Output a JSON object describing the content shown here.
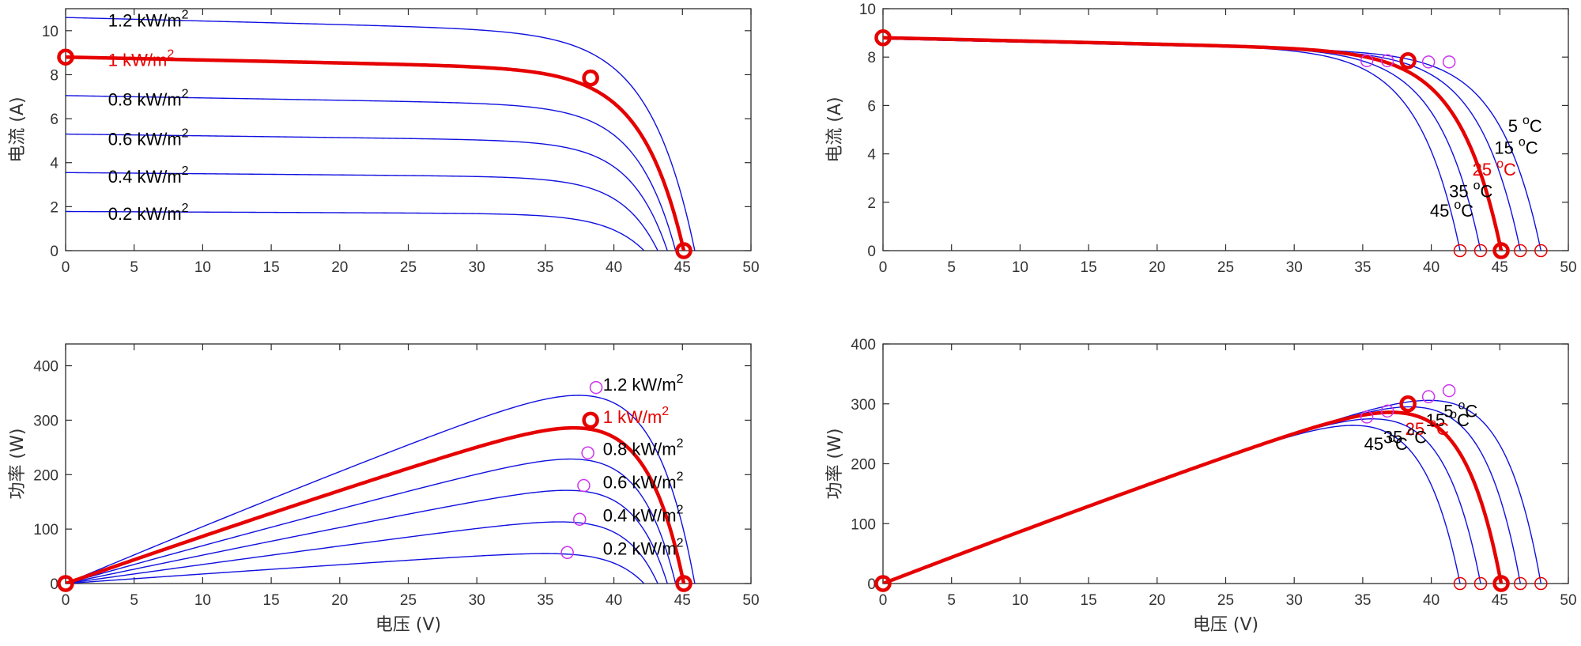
{
  "colors": {
    "curve": "#1010e0",
    "highlight": "#e60000",
    "mpp_marker": "#cc33ee",
    "voc_marker": "#e60000"
  },
  "chart_data": [
    {
      "id": "iv_irradiance",
      "type": "line",
      "xlabel": "",
      "ylabel": "电流 (A)",
      "xlim": [
        0,
        50
      ],
      "ylim": [
        0,
        11
      ],
      "xticks": [
        "0",
        "5",
        "10",
        "15",
        "20",
        "25",
        "30",
        "35",
        "40",
        "45",
        "50"
      ],
      "yticks": [
        "0",
        "2",
        "4",
        "6",
        "8",
        "10"
      ],
      "series": [
        {
          "name": "1.2 kW/m2",
          "label": "1.2 kW/m",
          "isc": 10.6,
          "voc": 45.9,
          "vmp": 38.7,
          "imp": 9.4,
          "highlight": false
        },
        {
          "name": "1 kW/m2",
          "label": "1 kW/m",
          "isc": 8.8,
          "voc": 45.1,
          "vmp": 38.3,
          "imp": 7.85,
          "highlight": true
        },
        {
          "name": "0.8 kW/m2",
          "label": "0.8 kW/m",
          "isc": 7.05,
          "voc": 44.5,
          "vmp": 38.1,
          "imp": 6.3,
          "highlight": false
        },
        {
          "name": "0.6 kW/m2",
          "label": "0.6 kW/m",
          "isc": 5.3,
          "voc": 43.9,
          "vmp": 37.8,
          "imp": 4.75,
          "highlight": false
        },
        {
          "name": "0.4 kW/m2",
          "label": "0.4 kW/m",
          "isc": 3.55,
          "voc": 43.2,
          "vmp": 37.5,
          "imp": 3.15,
          "highlight": false
        },
        {
          "name": "0.2 kW/m2",
          "label": "0.2 kW/m",
          "isc": 1.78,
          "voc": 42.2,
          "vmp": 36.6,
          "imp": 1.56,
          "highlight": false
        }
      ],
      "points": {
        "isc": [
          0,
          8.8
        ],
        "mpp": [
          38.3,
          7.85
        ],
        "voc": [
          45.1,
          0
        ]
      },
      "annotations": [
        {
          "text": "1.2 kW/m",
          "sup": "2",
          "x": 3.1,
          "y": 10.2,
          "highlight": false
        },
        {
          "text": "1 kW/m",
          "sup": "2",
          "x": 3.1,
          "y": 8.4,
          "highlight": true
        },
        {
          "text": "0.8 kW/m",
          "sup": "2",
          "x": 3.1,
          "y": 6.6,
          "highlight": false
        },
        {
          "text": "0.6 kW/m",
          "sup": "2",
          "x": 3.1,
          "y": 4.8,
          "highlight": false
        },
        {
          "text": "0.4 kW/m",
          "sup": "2",
          "x": 3.1,
          "y": 3.1,
          "highlight": false
        },
        {
          "text": "0.2 kW/m",
          "sup": "2",
          "x": 3.1,
          "y": 1.4,
          "highlight": false
        }
      ]
    },
    {
      "id": "iv_temperature",
      "type": "line",
      "xlabel": "",
      "ylabel": "电流 (A)",
      "xlim": [
        0,
        50
      ],
      "ylim": [
        0,
        10
      ],
      "xticks": [
        "0",
        "5",
        "10",
        "15",
        "20",
        "25",
        "30",
        "35",
        "40",
        "45",
        "50"
      ],
      "yticks": [
        "0",
        "2",
        "4",
        "6",
        "8",
        "10"
      ],
      "series": [
        {
          "name": "5 °C",
          "isc": 8.75,
          "voc": 48.0,
          "vmp": 41.3,
          "imp": 7.8,
          "highlight": false
        },
        {
          "name": "15 °C",
          "isc": 8.75,
          "voc": 46.5,
          "vmp": 39.8,
          "imp": 7.8,
          "highlight": false
        },
        {
          "name": "25 °C",
          "isc": 8.8,
          "voc": 45.1,
          "vmp": 38.3,
          "imp": 7.85,
          "highlight": true
        },
        {
          "name": "35 °C",
          "isc": 8.8,
          "voc": 43.6,
          "vmp": 36.8,
          "imp": 7.85,
          "highlight": false
        },
        {
          "name": "45 °C",
          "isc": 8.8,
          "voc": 42.1,
          "vmp": 35.3,
          "imp": 7.85,
          "highlight": false
        }
      ],
      "points": {
        "isc": [
          0,
          8.8
        ],
        "mpp": [
          38.3,
          7.85
        ],
        "voc": [
          45.1,
          0
        ]
      },
      "annotations": [
        {
          "text": "5",
          "deg": "o",
          "unit": "C",
          "x": 45.6,
          "y": 4.9,
          "highlight": false
        },
        {
          "text": "15",
          "deg": "o",
          "unit": "C",
          "x": 44.6,
          "y": 4.0,
          "highlight": false
        },
        {
          "text": "25",
          "deg": "o",
          "unit": "C",
          "x": 43.0,
          "y": 3.1,
          "highlight": true
        },
        {
          "text": "35",
          "deg": "o",
          "unit": "C",
          "x": 41.3,
          "y": 2.2,
          "highlight": false
        },
        {
          "text": "45",
          "deg": "o",
          "unit": "C",
          "x": 39.9,
          "y": 1.4,
          "highlight": false
        }
      ]
    },
    {
      "id": "pv_irradiance",
      "type": "line",
      "xlabel": "电压 (V)",
      "ylabel": "功率 (W)",
      "xlim": [
        0,
        50
      ],
      "ylim": [
        0,
        440
      ],
      "xticks": [
        "0",
        "5",
        "10",
        "15",
        "20",
        "25",
        "30",
        "35",
        "40",
        "45",
        "50"
      ],
      "yticks": [
        "0",
        "100",
        "200",
        "300",
        "400"
      ],
      "series": [
        {
          "name": "1.2 kW/m2",
          "isc": 10.6,
          "voc": 45.9,
          "vmp": 38.7,
          "imp": 9.4,
          "highlight": false
        },
        {
          "name": "1 kW/m2",
          "isc": 8.8,
          "voc": 45.1,
          "vmp": 38.3,
          "imp": 7.85,
          "highlight": true
        },
        {
          "name": "0.8 kW/m2",
          "isc": 7.05,
          "voc": 44.5,
          "vmp": 38.1,
          "imp": 6.3,
          "highlight": false
        },
        {
          "name": "0.6 kW/m2",
          "isc": 5.3,
          "voc": 43.9,
          "vmp": 37.8,
          "imp": 4.75,
          "highlight": false
        },
        {
          "name": "0.4 kW/m2",
          "isc": 3.55,
          "voc": 43.2,
          "vmp": 37.5,
          "imp": 3.15,
          "highlight": false
        },
        {
          "name": "0.2 kW/m2",
          "isc": 1.78,
          "voc": 42.2,
          "vmp": 36.6,
          "imp": 1.56,
          "highlight": false
        }
      ],
      "mpp_values": [
        360,
        300,
        240,
        180,
        118,
        57
      ],
      "annotations": [
        {
          "text": "1.2 kW/m",
          "sup": "2",
          "x": 39.2,
          "y": 354,
          "highlight": false
        },
        {
          "text": "1 kW/m",
          "sup": "2",
          "x": 39.2,
          "y": 295,
          "highlight": true
        },
        {
          "text": "0.8 kW/m",
          "sup": "2",
          "x": 39.2,
          "y": 236,
          "highlight": false
        },
        {
          "text": "0.6 kW/m",
          "sup": "2",
          "x": 39.2,
          "y": 175,
          "highlight": false
        },
        {
          "text": "0.4 kW/m",
          "sup": "2",
          "x": 39.2,
          "y": 114,
          "highlight": false
        },
        {
          "text": "0.2 kW/m",
          "sup": "2",
          "x": 39.2,
          "y": 53,
          "highlight": false
        }
      ]
    },
    {
      "id": "pv_temperature",
      "type": "line",
      "xlabel": "电压 (V)",
      "ylabel": "功率 (W)",
      "xlim": [
        0,
        50
      ],
      "ylim": [
        0,
        400
      ],
      "xticks": [
        "0",
        "5",
        "10",
        "15",
        "20",
        "25",
        "30",
        "35",
        "40",
        "45",
        "50"
      ],
      "yticks": [
        "0",
        "100",
        "200",
        "300",
        "400"
      ],
      "series": [
        {
          "name": "5 °C",
          "isc": 8.75,
          "voc": 48.0,
          "vmp": 41.3,
          "imp": 7.8,
          "highlight": false
        },
        {
          "name": "15 °C",
          "isc": 8.75,
          "voc": 46.5,
          "vmp": 39.8,
          "imp": 7.8,
          "highlight": false
        },
        {
          "name": "25 °C",
          "isc": 8.8,
          "voc": 45.1,
          "vmp": 38.3,
          "imp": 7.85,
          "highlight": true
        },
        {
          "name": "35 °C",
          "isc": 8.8,
          "voc": 43.6,
          "vmp": 36.8,
          "imp": 7.85,
          "highlight": false
        },
        {
          "name": "45 °C",
          "isc": 8.8,
          "voc": 42.1,
          "vmp": 35.3,
          "imp": 7.85,
          "highlight": false
        }
      ],
      "mpp_values": [
        322,
        312,
        300,
        288,
        278
      ],
      "annotations": [
        {
          "text": "5",
          "deg": "o",
          "unit": "C",
          "x": 40.9,
          "y": 278,
          "highlight": false
        },
        {
          "text": "15",
          "deg": "o",
          "unit": "C",
          "x": 39.6,
          "y": 263,
          "highlight": false
        },
        {
          "text": "25",
          "deg": "o",
          "unit": "C",
          "x": 38.1,
          "y": 248,
          "highlight": true
        },
        {
          "text": "35",
          "deg": "o",
          "unit": "C",
          "x": 36.5,
          "y": 234,
          "highlight": false
        },
        {
          "text": "45",
          "deg": "o",
          "unit": "C",
          "x": 35.1,
          "y": 223,
          "highlight": false
        }
      ]
    }
  ]
}
